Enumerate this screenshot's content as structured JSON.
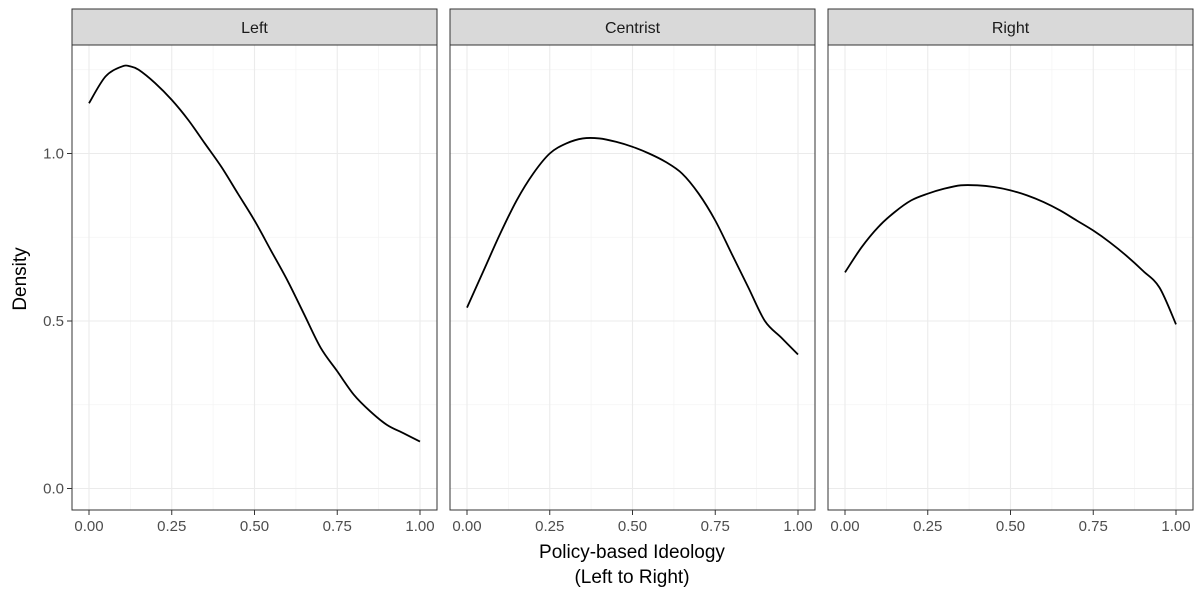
{
  "chart_data": {
    "type": "line",
    "facet_layout": "1 row x 3 columns",
    "xlabel": "Policy-based Ideology\n(Left to Right)",
    "xlabel_lines": [
      "Policy-based Ideology",
      "(Left to Right)"
    ],
    "ylabel": "Density",
    "xlim": [
      0,
      1
    ],
    "ylim": [
      0,
      1.3
    ],
    "x_ticks": [
      0,
      0.25,
      0.5,
      0.75,
      1
    ],
    "x_tick_labels": [
      "0.00",
      "0.25",
      "0.50",
      "0.75",
      "1.00"
    ],
    "y_ticks": [
      0,
      0.5,
      1
    ],
    "y_tick_labels": [
      "0.0",
      "0.5",
      "1.0"
    ],
    "grid": true,
    "line_color": "#000000",
    "strip_color": "#d9d9d9",
    "panels": [
      {
        "label": "Left",
        "x": [
          0,
          0.05,
          0.1,
          0.125,
          0.15,
          0.2,
          0.25,
          0.3,
          0.35,
          0.4,
          0.45,
          0.5,
          0.55,
          0.6,
          0.65,
          0.7,
          0.75,
          0.8,
          0.85,
          0.9,
          0.95,
          1.0
        ],
        "y": [
          1.15,
          1.23,
          1.26,
          1.26,
          1.25,
          1.21,
          1.16,
          1.1,
          1.03,
          0.96,
          0.88,
          0.8,
          0.71,
          0.62,
          0.52,
          0.42,
          0.35,
          0.28,
          0.23,
          0.19,
          0.165,
          0.14
        ]
      },
      {
        "label": "Centrist",
        "x": [
          0,
          0.05,
          0.1,
          0.15,
          0.2,
          0.25,
          0.3,
          0.35,
          0.4,
          0.45,
          0.5,
          0.55,
          0.6,
          0.65,
          0.7,
          0.75,
          0.8,
          0.85,
          0.9,
          0.95,
          1.0
        ],
        "y": [
          0.54,
          0.65,
          0.76,
          0.86,
          0.94,
          1.0,
          1.03,
          1.045,
          1.045,
          1.035,
          1.02,
          1.0,
          0.975,
          0.94,
          0.88,
          0.8,
          0.7,
          0.6,
          0.5,
          0.45,
          0.4
        ]
      },
      {
        "label": "Right",
        "x": [
          0,
          0.05,
          0.1,
          0.15,
          0.2,
          0.25,
          0.3,
          0.35,
          0.4,
          0.45,
          0.5,
          0.55,
          0.6,
          0.65,
          0.7,
          0.75,
          0.8,
          0.85,
          0.9,
          0.95,
          1.0
        ],
        "y": [
          0.645,
          0.72,
          0.78,
          0.825,
          0.86,
          0.88,
          0.895,
          0.905,
          0.905,
          0.9,
          0.89,
          0.875,
          0.855,
          0.83,
          0.8,
          0.77,
          0.735,
          0.695,
          0.65,
          0.6,
          0.49
        ]
      }
    ]
  }
}
